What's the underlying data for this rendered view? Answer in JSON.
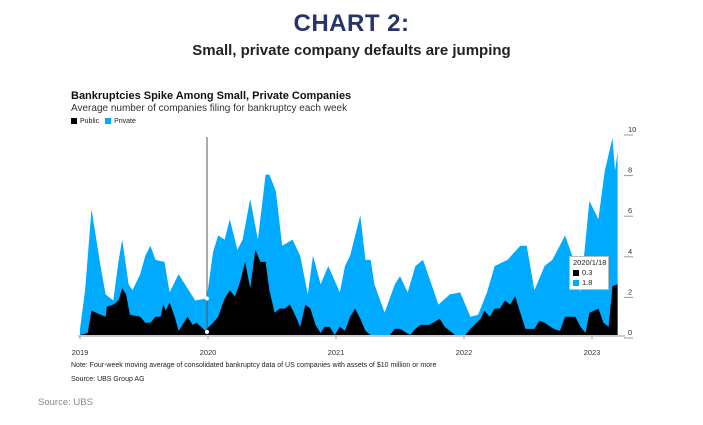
{
  "header": {
    "title": "CHART 2:",
    "subtitle": "Small, private company defaults are jumping"
  },
  "footer": {
    "source": "Source: UBS"
  },
  "colors": {
    "public": "#000000",
    "private": "#00aaff",
    "title": "#27356b"
  },
  "tooltip": {
    "date": "2020/1/18",
    "public": "0.3",
    "private": "1.8"
  },
  "chart_data": {
    "type": "area",
    "title": "Bankruptcies Spike Among Small, Private Companies",
    "subtitle": "Average number of companies filing for bankruptcy each week",
    "note": "Note: Four-week moving average of consolidated bankruptcy data of US companies with assets of $10 million or more",
    "source": "Source: UBS Group AG",
    "legend_position": "top-left",
    "grid": false,
    "xlim": [
      2019,
      2023.2
    ],
    "ylim": [
      0,
      10
    ],
    "x_ticks": [
      "2019",
      "2020",
      "2021",
      "2022",
      "2023"
    ],
    "y_ticks": [
      "0",
      "2",
      "4",
      "6",
      "8",
      "10"
    ],
    "series": [
      {
        "name": "Private",
        "points": [
          [
            2019.0,
            0.3
          ],
          [
            2019.04,
            2.2
          ],
          [
            2019.09,
            6.2
          ],
          [
            2019.16,
            3.4
          ],
          [
            2019.2,
            2.0
          ],
          [
            2019.26,
            1.7
          ],
          [
            2019.3,
            3.6
          ],
          [
            2019.33,
            4.7
          ],
          [
            2019.38,
            2.5
          ],
          [
            2019.41,
            2.2
          ],
          [
            2019.47,
            3.0
          ],
          [
            2019.51,
            3.9
          ],
          [
            2019.55,
            4.4
          ],
          [
            2019.59,
            3.7
          ],
          [
            2019.66,
            3.6
          ],
          [
            2019.7,
            2.1
          ],
          [
            2019.77,
            3.0
          ],
          [
            2019.82,
            2.5
          ],
          [
            2019.9,
            1.7
          ],
          [
            2019.99,
            1.8
          ],
          [
            2020.04,
            4.1
          ],
          [
            2020.08,
            4.9
          ],
          [
            2020.13,
            4.7
          ],
          [
            2020.17,
            5.7
          ],
          [
            2020.23,
            4.2
          ],
          [
            2020.27,
            4.7
          ],
          [
            2020.33,
            6.7
          ],
          [
            2020.39,
            4.7
          ],
          [
            2020.45,
            7.9
          ],
          [
            2020.48,
            7.9
          ],
          [
            2020.53,
            7.1
          ],
          [
            2020.58,
            4.4
          ],
          [
            2020.66,
            4.7
          ],
          [
            2020.72,
            3.9
          ],
          [
            2020.78,
            2.0
          ],
          [
            2020.82,
            3.9
          ],
          [
            2020.88,
            2.5
          ],
          [
            2020.94,
            3.4
          ],
          [
            2021.03,
            2.1
          ],
          [
            2021.07,
            3.4
          ],
          [
            2021.11,
            3.9
          ],
          [
            2021.19,
            5.9
          ],
          [
            2021.23,
            3.7
          ],
          [
            2021.27,
            3.7
          ],
          [
            2021.3,
            2.5
          ],
          [
            2021.38,
            1.1
          ],
          [
            2021.46,
            2.5
          ],
          [
            2021.5,
            2.9
          ],
          [
            2021.56,
            2.1
          ],
          [
            2021.62,
            3.4
          ],
          [
            2021.68,
            3.7
          ],
          [
            2021.73,
            2.8
          ],
          [
            2021.8,
            1.5
          ],
          [
            2021.89,
            2.0
          ],
          [
            2021.97,
            2.1
          ],
          [
            2022.05,
            0.9
          ],
          [
            2022.11,
            1.0
          ],
          [
            2022.18,
            2.1
          ],
          [
            2022.24,
            3.4
          ],
          [
            2022.34,
            3.7
          ],
          [
            2022.44,
            4.4
          ],
          [
            2022.49,
            4.4
          ],
          [
            2022.55,
            2.2
          ],
          [
            2022.63,
            3.4
          ],
          [
            2022.69,
            3.7
          ],
          [
            2022.79,
            4.9
          ],
          [
            2022.84,
            4.0
          ],
          [
            2022.91,
            2.1
          ],
          [
            2022.98,
            6.6
          ],
          [
            2023.05,
            5.7
          ],
          [
            2023.1,
            8.1
          ],
          [
            2023.16,
            9.7
          ],
          [
            2023.18,
            8.1
          ],
          [
            2023.2,
            9.0
          ]
        ]
      },
      {
        "name": "Public",
        "points": [
          [
            2019.0,
            0
          ],
          [
            2019.06,
            0.1
          ],
          [
            2019.09,
            1.2
          ],
          [
            2019.16,
            1.0
          ],
          [
            2019.2,
            0.9
          ],
          [
            2019.21,
            1.4
          ],
          [
            2019.26,
            1.5
          ],
          [
            2019.3,
            1.7
          ],
          [
            2019.33,
            2.3
          ],
          [
            2019.36,
            2.0
          ],
          [
            2019.39,
            1.0
          ],
          [
            2019.47,
            0.9
          ],
          [
            2019.51,
            0.6
          ],
          [
            2019.55,
            0.6
          ],
          [
            2019.59,
            0.9
          ],
          [
            2019.63,
            0.9
          ],
          [
            2019.65,
            1.5
          ],
          [
            2019.67,
            1.2
          ],
          [
            2019.7,
            1.6
          ],
          [
            2019.74,
            0.9
          ],
          [
            2019.77,
            0.2
          ],
          [
            2019.8,
            0.5
          ],
          [
            2019.84,
            0.9
          ],
          [
            2019.88,
            0.5
          ],
          [
            2019.91,
            0.6
          ],
          [
            2019.98,
            0.2
          ],
          [
            2019.99,
            0.3
          ],
          [
            2020.04,
            0.6
          ],
          [
            2020.08,
            0.9
          ],
          [
            2020.13,
            1.8
          ],
          [
            2020.17,
            2.2
          ],
          [
            2020.21,
            1.9
          ],
          [
            2020.25,
            2.6
          ],
          [
            2020.29,
            3.6
          ],
          [
            2020.33,
            2.3
          ],
          [
            2020.37,
            4.2
          ],
          [
            2020.41,
            3.6
          ],
          [
            2020.45,
            3.6
          ],
          [
            2020.48,
            2.2
          ],
          [
            2020.52,
            1.1
          ],
          [
            2020.56,
            1.3
          ],
          [
            2020.6,
            1.3
          ],
          [
            2020.64,
            1.5
          ],
          [
            2020.68,
            1.0
          ],
          [
            2020.72,
            0.4
          ],
          [
            2020.76,
            1.5
          ],
          [
            2020.8,
            1.3
          ],
          [
            2020.84,
            0.5
          ],
          [
            2020.88,
            0.1
          ],
          [
            2020.91,
            0.4
          ],
          [
            2020.95,
            0.4
          ],
          [
            2020.99,
            0
          ],
          [
            2021.03,
            0.4
          ],
          [
            2021.07,
            0.2
          ],
          [
            2021.11,
            0.9
          ],
          [
            2021.15,
            1.3
          ],
          [
            2021.19,
            0.8
          ],
          [
            2021.23,
            0.2
          ],
          [
            2021.27,
            0
          ],
          [
            2021.42,
            0
          ],
          [
            2021.46,
            0.3
          ],
          [
            2021.5,
            0.3
          ],
          [
            2021.58,
            0
          ],
          [
            2021.62,
            0.3
          ],
          [
            2021.66,
            0.5
          ],
          [
            2021.73,
            0.5
          ],
          [
            2021.81,
            0.8
          ],
          [
            2021.85,
            0.4
          ],
          [
            2021.93,
            0
          ],
          [
            2022.01,
            0
          ],
          [
            2022.05,
            0.3
          ],
          [
            2022.13,
            0.8
          ],
          [
            2022.16,
            1.2
          ],
          [
            2022.2,
            0.9
          ],
          [
            2022.24,
            1.3
          ],
          [
            2022.28,
            1.3
          ],
          [
            2022.32,
            1.7
          ],
          [
            2022.36,
            1.5
          ],
          [
            2022.4,
            1.9
          ],
          [
            2022.44,
            1.1
          ],
          [
            2022.48,
            0.3
          ],
          [
            2022.55,
            0.3
          ],
          [
            2022.59,
            0.7
          ],
          [
            2022.63,
            0.6
          ],
          [
            2022.7,
            0.3
          ],
          [
            2022.75,
            0.2
          ],
          [
            2022.79,
            0.9
          ],
          [
            2022.83,
            0.9
          ],
          [
            2022.87,
            0.9
          ],
          [
            2022.91,
            0.4
          ],
          [
            2022.95,
            0.1
          ],
          [
            2022.98,
            1.1
          ],
          [
            2023.05,
            1.3
          ],
          [
            2023.09,
            0.6
          ],
          [
            2023.13,
            0.4
          ],
          [
            2023.16,
            2.4
          ],
          [
            2023.2,
            2.5
          ]
        ]
      }
    ]
  }
}
